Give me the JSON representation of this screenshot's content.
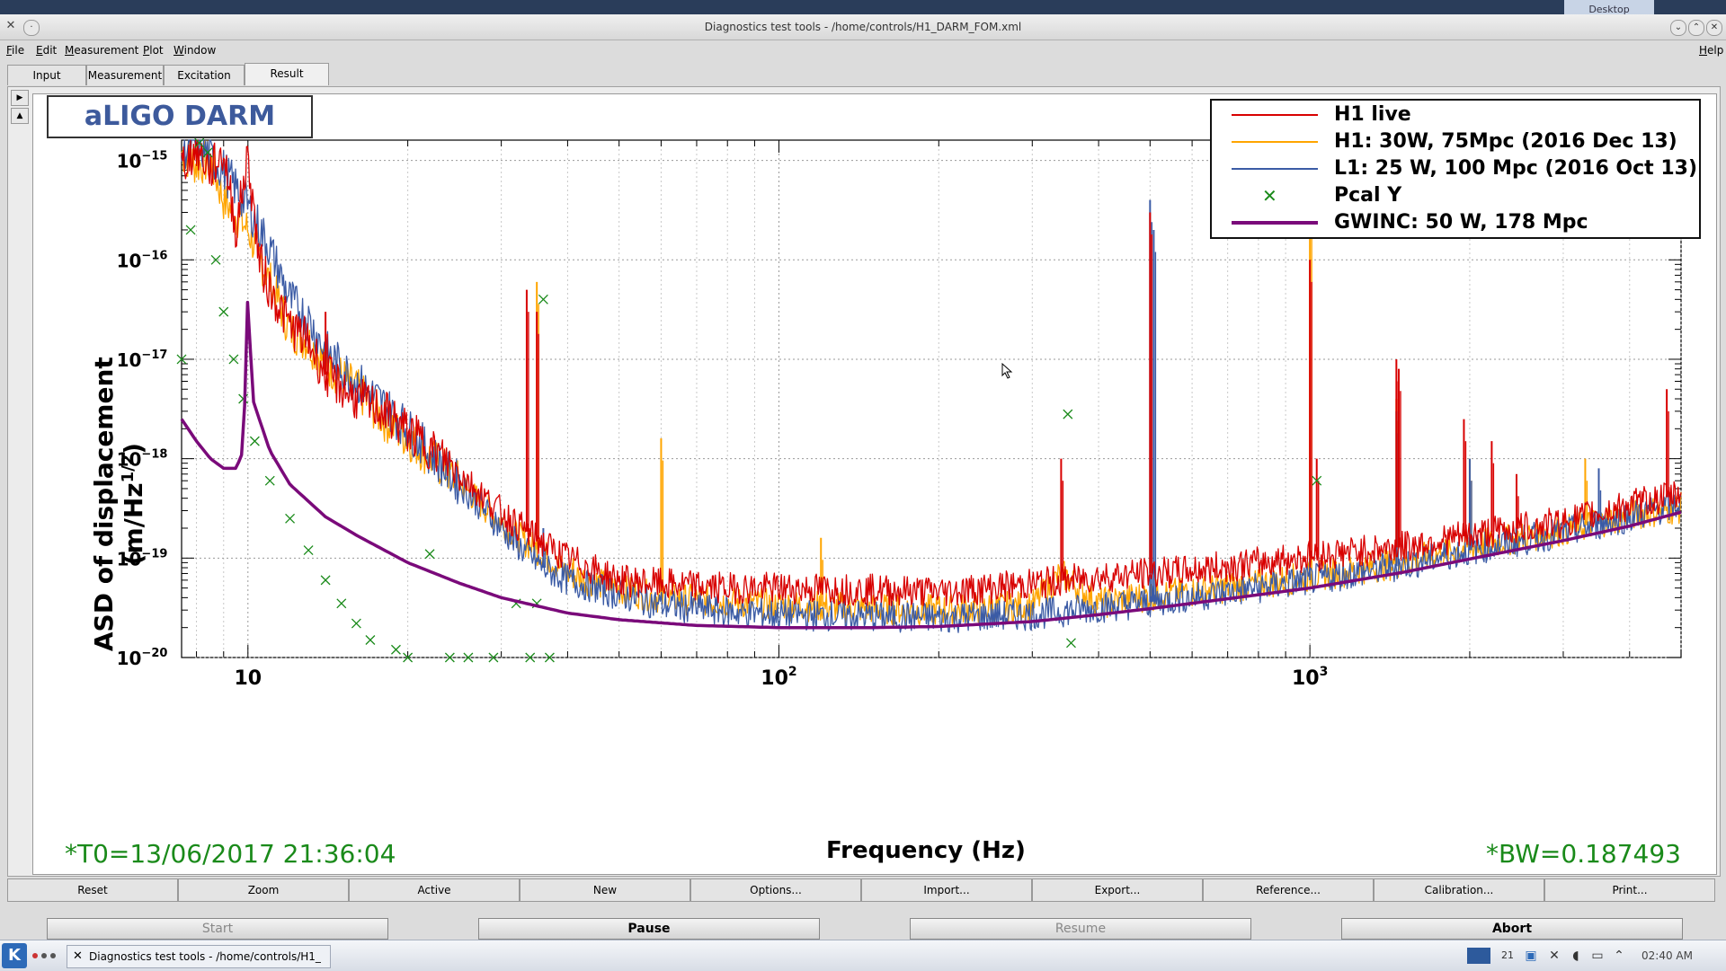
{
  "window": {
    "title": "Diagnostics test tools - /home/controls/H1_DARM_FOM.xml",
    "desktop_tab": "Desktop"
  },
  "menu": {
    "items": [
      {
        "label": "File",
        "u": "F",
        "rest": "ile"
      },
      {
        "label": "Edit",
        "u": "E",
        "rest": "dit"
      },
      {
        "label": "Measurement",
        "u": "M",
        "rest": "easurement"
      },
      {
        "label": "Plot",
        "u": "P",
        "rest": "lot"
      },
      {
        "label": "Window",
        "u": "W",
        "rest": "indow"
      }
    ],
    "help": {
      "label": "Help",
      "u": "H",
      "rest": "elp"
    }
  },
  "tabs": [
    {
      "label": "Input"
    },
    {
      "label": "Measurement"
    },
    {
      "label": "Excitation"
    },
    {
      "label": "Result",
      "selected": true
    }
  ],
  "side_arrows": {
    "up": "▶",
    "down": "▲"
  },
  "plot_title": "aLIGO DARM",
  "t0_text": "*T0=13/06/2017 21:36:04",
  "bw_text": "*BW=0.187493",
  "chart_data": {
    "type": "line",
    "xscale": "log",
    "yscale": "log",
    "xlim": [
      7.5,
      5000
    ],
    "ylim": [
      1e-20,
      1.6e-15
    ],
    "xlabel": "Frequency (Hz)",
    "ylabel": "ASD of displacement (m/Hz",
    "ylabel_sup": "1/2",
    "ylabel_close": ")",
    "xticks": [
      {
        "value": 10,
        "base": "10",
        "exp": ""
      },
      {
        "value": 100,
        "base": "10",
        "exp": "2"
      },
      {
        "value": 1000,
        "base": "10",
        "exp": "3"
      }
    ],
    "yticks": [
      {
        "value": 1e-15,
        "base": "10",
        "exp": "−15"
      },
      {
        "value": 1e-16,
        "base": "10",
        "exp": "−16"
      },
      {
        "value": 1e-17,
        "base": "10",
        "exp": "−17"
      },
      {
        "value": 1e-18,
        "base": "10",
        "exp": "−18"
      },
      {
        "value": 1e-19,
        "base": "10",
        "exp": "−19"
      },
      {
        "value": 1e-20,
        "base": "10",
        "exp": "−20"
      }
    ],
    "grid": true,
    "legend_position": "top-right",
    "series": [
      {
        "name": "H1: 30W, 75Mpc (2016 Dec 13)",
        "color": "#ffa500",
        "style": "line",
        "x": [
          7.5,
          8,
          8.5,
          9,
          10,
          11,
          12,
          13,
          14,
          16,
          18,
          20,
          24,
          28,
          32,
          36,
          40,
          50,
          60,
          80,
          100,
          150,
          200,
          300,
          340,
          400,
          500,
          600,
          800,
          1000,
          1500,
          2000,
          3000,
          4000,
          5000
        ],
        "y": [
          1.2e-15,
          9e-16,
          1e-15,
          4e-16,
          2e-16,
          6e-17,
          2e-17,
          1.5e-17,
          9e-18,
          5e-18,
          2.5e-18,
          1.6e-18,
          7e-19,
          3.2e-19,
          1.7e-19,
          1.1e-19,
          7e-20,
          4.8e-20,
          4e-20,
          3.6e-20,
          3.4e-20,
          3.1e-20,
          3e-20,
          3.3e-20,
          7e-20,
          3.5e-20,
          4.2e-20,
          4.6e-20,
          5.5e-20,
          6.5e-20,
          9e-20,
          1.3e-19,
          1.9e-19,
          2.7e-19,
          3.2e-19
        ],
        "peaks": [
          [
            35,
            6e-17
          ],
          [
            41,
            1e-19
          ],
          [
            60,
            1.6e-18
          ],
          [
            120,
            1.6e-19
          ],
          [
            1000,
            3e-16
          ],
          [
            1455,
            4e-18
          ],
          [
            2000,
            1e-18
          ],
          [
            3300,
            1e-18
          ]
        ]
      },
      {
        "name": "L1: 25 W, 100 Mpc (2016 Oct 13)",
        "color": "#3b5ba5",
        "style": "line",
        "x": [
          7.5,
          8,
          9,
          10,
          11,
          12,
          13,
          14,
          16,
          18,
          20,
          24,
          28,
          32,
          36,
          40,
          50,
          60,
          80,
          100,
          150,
          200,
          300,
          400,
          500,
          600,
          800,
          1000,
          1500,
          2000,
          3000,
          4000,
          5000
        ],
        "y": [
          1.3e-15,
          1.5e-15,
          8e-16,
          3.5e-16,
          1.3e-16,
          4e-17,
          2.5e-17,
          1.2e-17,
          6e-18,
          3.5e-18,
          2e-18,
          7e-19,
          3e-19,
          1.4e-19,
          8e-20,
          6e-20,
          4.3e-20,
          3.4e-20,
          2.9e-20,
          2.7e-20,
          2.6e-20,
          2.5e-20,
          2.7e-20,
          3.2e-20,
          3.6e-20,
          4.1e-20,
          5e-20,
          6e-20,
          8.5e-20,
          1.2e-19,
          1.8e-19,
          2.6e-19,
          3.5e-19
        ],
        "peaks": [
          [
            36,
            2e-19
          ],
          [
            500,
            4e-16
          ],
          [
            508,
            2e-16
          ],
          [
            1000,
            1e-19
          ],
          [
            1455,
            3e-18
          ],
          [
            2000,
            1e-18
          ],
          [
            3500,
            8e-19
          ]
        ]
      },
      {
        "name": "H1 live",
        "color": "#d80000",
        "style": "line",
        "x": [
          7.5,
          8,
          8.5,
          9,
          9.5,
          10,
          10.5,
          11,
          12,
          13,
          14,
          16,
          18,
          20,
          24,
          28,
          32,
          36,
          40,
          50,
          60,
          80,
          100,
          150,
          200,
          250,
          300,
          350,
          400,
          500,
          600,
          800,
          1000,
          1500,
          2000,
          3000,
          4000,
          5000
        ],
        "y": [
          9e-16,
          1.3e-15,
          8e-16,
          1.2e-15,
          2e-16,
          1.1e-15,
          1e-16,
          5e-17,
          2.2e-17,
          1.5e-17,
          7e-18,
          4e-18,
          3e-18,
          1.9e-18,
          9e-19,
          4e-19,
          2.2e-19,
          1.4e-19,
          1e-19,
          6e-20,
          5.5e-20,
          5e-20,
          5e-20,
          4.8e-20,
          4.6e-20,
          5e-20,
          5.5e-20,
          6e-20,
          6.5e-20,
          7e-20,
          7.5e-20,
          9e-20,
          1.05e-19,
          1.3e-19,
          1.7e-19,
          2.3e-19,
          3.4e-19,
          4.4e-19
        ],
        "peaks": [
          [
            14,
            3e-17
          ],
          [
            33.5,
            5e-17
          ],
          [
            35,
            3e-17
          ],
          [
            340,
            1e-18
          ],
          [
            500,
            3e-16
          ],
          [
            1000,
            1e-16
          ],
          [
            1030,
            1e-18
          ],
          [
            1455,
            1e-17
          ],
          [
            1470,
            8e-18
          ],
          [
            1950,
            2.5e-18
          ],
          [
            2200,
            1.5e-18
          ],
          [
            2450,
            7e-19
          ],
          [
            4700,
            5e-18
          ]
        ]
      },
      {
        "name": "Pcal Y",
        "color": "#1a8a1a",
        "style": "markers",
        "x": [
          7.5,
          7.8,
          8.1,
          8.4,
          8.7,
          9,
          9.4,
          9.8,
          10.3,
          11,
          12,
          13,
          14,
          15,
          16,
          17,
          19,
          20,
          22,
          24,
          26,
          29,
          32,
          34,
          35,
          36,
          37,
          350,
          355,
          1030
        ],
        "y": [
          1e-17,
          2e-16,
          1.5e-15,
          1.2e-15,
          1e-16,
          3e-17,
          1e-17,
          4e-18,
          1.5e-18,
          6e-19,
          2.5e-19,
          1.2e-19,
          6e-20,
          3.5e-20,
          2.2e-20,
          1.5e-20,
          1.2e-20,
          1e-20,
          1.1e-19,
          1e-20,
          1e-20,
          1e-20,
          3.5e-20,
          1e-20,
          3.5e-20,
          4e-17,
          1e-20,
          2.8e-18,
          1.4e-20,
          6e-19
        ]
      },
      {
        "name": "GWINC: 50 W, 178 Mpc",
        "color": "#7a0a7a",
        "style": "thick",
        "x": [
          7.5,
          8,
          8.5,
          9,
          9.5,
          9.8,
          10,
          10.2,
          11,
          12,
          14,
          16,
          20,
          25,
          30,
          40,
          50,
          70,
          100,
          150,
          200,
          300,
          400,
          500,
          700,
          1000,
          1500,
          2000,
          3000,
          4000,
          5000
        ],
        "y": [
          2.5e-18,
          1.5e-18,
          1e-18,
          8e-19,
          8e-19,
          1.2e-18,
          5e-17,
          4e-18,
          1.2e-18,
          5.5e-19,
          2.6e-19,
          1.7e-19,
          9e-20,
          5.6e-20,
          4e-20,
          2.8e-20,
          2.4e-20,
          2.1e-20,
          2e-20,
          2e-20,
          2.05e-20,
          2.3e-20,
          2.7e-20,
          3.1e-20,
          3.9e-20,
          5e-20,
          7.2e-20,
          9.8e-20,
          1.5e-19,
          2.1e-19,
          2.9e-19
        ]
      }
    ]
  },
  "legend": {
    "entries": [
      {
        "label": "H1 live",
        "color": "#d80000",
        "type": "line"
      },
      {
        "label": "H1: 30W, 75Mpc (2016 Dec 13)",
        "color": "#ffa500",
        "type": "line"
      },
      {
        "label": "L1: 25 W, 100 Mpc (2016 Oct 13)",
        "color": "#3b5ba5",
        "type": "line"
      },
      {
        "label": "Pcal Y",
        "color": "#1a8a1a",
        "type": "marker"
      },
      {
        "label": "GWINC: 50 W, 178 Mpc",
        "color": "#7a0a7a",
        "type": "thick"
      }
    ]
  },
  "action_buttons": [
    {
      "label": "Reset"
    },
    {
      "label": "Zoom"
    },
    {
      "label": "Active"
    },
    {
      "label": "New"
    },
    {
      "label": "Options..."
    },
    {
      "label": "Import..."
    },
    {
      "label": "Export..."
    },
    {
      "label": "Reference..."
    },
    {
      "label": "Calibration..."
    },
    {
      "label": "Print..."
    }
  ],
  "run_buttons": [
    {
      "label": "Start",
      "enabled": false
    },
    {
      "label": "Pause",
      "enabled": true
    },
    {
      "label": "Resume",
      "enabled": false
    },
    {
      "label": "Abort",
      "enabled": true
    }
  ],
  "taskbar": {
    "task_label": "Diagnostics test tools - /home/controls/H1_",
    "clock": "02:40 AM",
    "tray_number": "21"
  }
}
